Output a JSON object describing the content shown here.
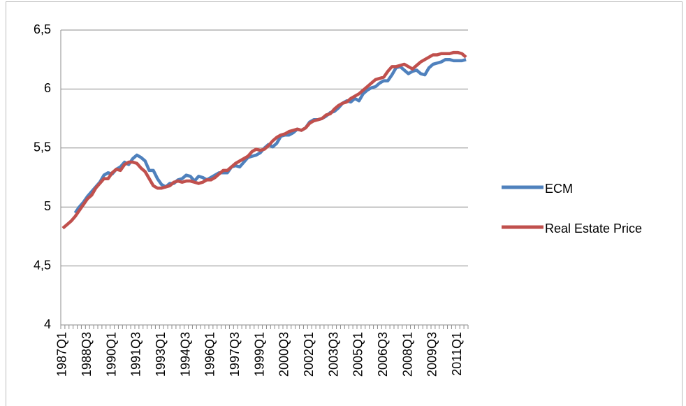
{
  "chart_data": {
    "type": "line",
    "categories": [
      "1987Q1",
      null,
      null,
      null,
      null,
      null,
      "1988Q3",
      null,
      null,
      null,
      null,
      null,
      "1990Q1",
      null,
      null,
      null,
      null,
      null,
      "1991Q3",
      null,
      null,
      null,
      null,
      null,
      "1993Q1",
      null,
      null,
      null,
      null,
      null,
      "1994Q3",
      null,
      null,
      null,
      null,
      null,
      "1996Q1",
      null,
      null,
      null,
      null,
      null,
      "1997Q3",
      null,
      null,
      null,
      null,
      null,
      "1999Q1",
      null,
      null,
      null,
      null,
      null,
      "2000Q3",
      null,
      null,
      null,
      null,
      null,
      "2002Q1",
      null,
      null,
      null,
      null,
      null,
      "2003Q3",
      null,
      null,
      null,
      null,
      null,
      "2005Q1",
      null,
      null,
      null,
      null,
      null,
      "2006Q3",
      null,
      null,
      null,
      null,
      null,
      "2008Q1",
      null,
      null,
      null,
      null,
      null,
      "2009Q3",
      null,
      null,
      null,
      null,
      null,
      "2011Q1",
      null,
      null
    ],
    "series": [
      {
        "name": "ECM",
        "color": "#4f81bd",
        "values": [
          null,
          null,
          null,
          4.95,
          5.0,
          5.04,
          5.09,
          5.13,
          5.17,
          5.21,
          5.27,
          5.29,
          5.28,
          5.32,
          5.34,
          5.38,
          5.36,
          5.41,
          5.44,
          5.42,
          5.39,
          5.31,
          5.31,
          5.24,
          5.19,
          5.17,
          5.2,
          5.2,
          5.23,
          5.24,
          5.27,
          5.26,
          5.22,
          5.26,
          5.25,
          5.23,
          5.25,
          5.27,
          5.29,
          5.29,
          5.29,
          5.34,
          5.35,
          5.34,
          5.38,
          5.42,
          5.43,
          5.44,
          5.46,
          5.5,
          5.53,
          5.51,
          5.54,
          5.6,
          5.61,
          5.61,
          5.63,
          5.66,
          5.65,
          5.67,
          5.72,
          5.74,
          5.74,
          5.75,
          5.77,
          5.8,
          5.81,
          5.84,
          5.88,
          5.9,
          5.89,
          5.92,
          5.9,
          5.96,
          5.99,
          6.01,
          6.02,
          6.05,
          6.07,
          6.07,
          6.12,
          6.18,
          6.19,
          6.16,
          6.13,
          6.15,
          6.16,
          6.13,
          6.12,
          6.18,
          6.21,
          6.22,
          6.23,
          6.25,
          6.25,
          6.24,
          6.24,
          6.24,
          6.25
        ]
      },
      {
        "name": "Real Estate Price",
        "color": "#c0504d",
        "values": [
          4.82,
          4.85,
          4.88,
          4.92,
          4.97,
          5.02,
          5.07,
          5.1,
          5.16,
          5.2,
          5.24,
          5.24,
          5.29,
          5.32,
          5.31,
          5.36,
          5.38,
          5.38,
          5.37,
          5.33,
          5.3,
          5.24,
          5.18,
          5.16,
          5.16,
          5.17,
          5.18,
          5.21,
          5.22,
          5.21,
          5.22,
          5.22,
          5.21,
          5.2,
          5.21,
          5.23,
          5.23,
          5.25,
          5.28,
          5.31,
          5.31,
          5.34,
          5.37,
          5.39,
          5.41,
          5.43,
          5.47,
          5.49,
          5.48,
          5.49,
          5.52,
          5.56,
          5.59,
          5.61,
          5.62,
          5.64,
          5.65,
          5.66,
          5.65,
          5.67,
          5.71,
          5.73,
          5.74,
          5.75,
          5.78,
          5.79,
          5.83,
          5.86,
          5.88,
          5.89,
          5.92,
          5.94,
          5.96,
          5.99,
          6.02,
          6.05,
          6.08,
          6.09,
          6.1,
          6.15,
          6.19,
          6.19,
          6.2,
          6.21,
          6.19,
          6.17,
          6.2,
          6.23,
          6.25,
          6.27,
          6.29,
          6.29,
          6.3,
          6.3,
          6.3,
          6.31,
          6.31,
          6.3,
          6.27
        ]
      }
    ],
    "ylim": [
      4,
      6.5
    ],
    "yticks": [
      4,
      {
        "value": 4.5,
        "label": "4,5"
      },
      5,
      {
        "value": 5.5,
        "label": "5,5"
      },
      6,
      {
        "value": 6.5,
        "label": "6,5"
      }
    ],
    "grid": true,
    "legend": "right"
  }
}
